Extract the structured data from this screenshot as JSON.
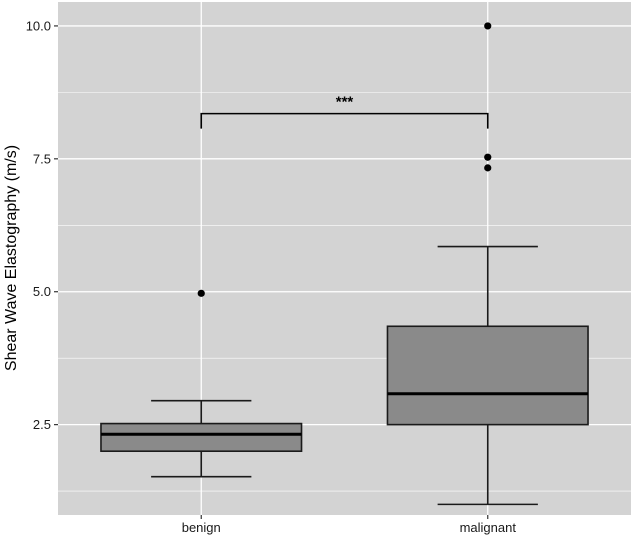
{
  "chart_data": {
    "type": "box",
    "title": "",
    "xlabel": "",
    "ylabel": "Shear Wave Elastography (m/s)",
    "categories": [
      "benign",
      "malignant"
    ],
    "ylim": [
      0.8,
      10.45
    ],
    "y_ticks": [
      2.5,
      5.0,
      7.5,
      10.0
    ],
    "y_tick_labels": [
      "2.5",
      "5.0",
      "7.5",
      "10.0"
    ],
    "grid": true,
    "legend": "none",
    "boxes": [
      {
        "category": "benign",
        "whisker_low": 1.52,
        "q1": 2.0,
        "median": 2.32,
        "q3": 2.52,
        "whisker_high": 2.95,
        "outliers": [
          4.97
        ]
      },
      {
        "category": "malignant",
        "whisker_low": 1.0,
        "q1": 2.5,
        "median": 3.08,
        "q3": 4.35,
        "whisker_high": 5.85,
        "outliers": [
          7.33,
          7.53,
          10.0
        ]
      }
    ],
    "significance": {
      "from": "benign",
      "to": "malignant",
      "y": 8.35,
      "label": "***"
    },
    "colors": {
      "panel": "#d3d3d3",
      "grid": "#ffffff",
      "box_fill": "#8a8a8a",
      "line": "#1a1a1a"
    }
  }
}
